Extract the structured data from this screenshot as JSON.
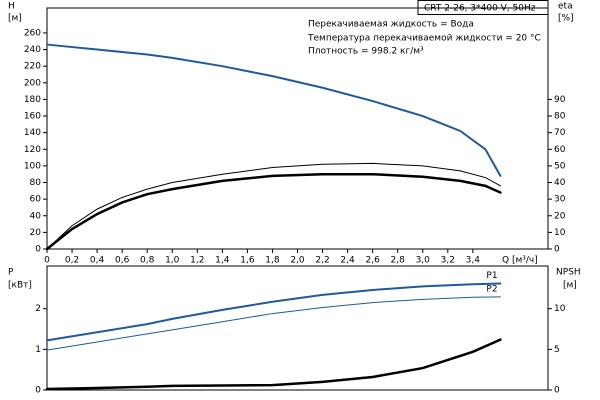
{
  "chart_data": [
    {
      "type": "line",
      "title": "CRT 2-26, 3*400 V, 50Hz",
      "annotations": [
        "Перекачиваемая жидкость = Вода",
        "Температура перекачиваемой жидкости = 20 °C",
        "Плотность = 998.2 кг/м³"
      ],
      "ylabel": "H",
      "yunit": "[м]",
      "y2label": "eta",
      "y2unit": "[%]",
      "xlabel": "Q [м³/ч]",
      "xlim": [
        0,
        4.0
      ],
      "xticks": [
        0,
        {
          "value": 0.2,
          "label": "0,2"
        },
        {
          "value": 0.4,
          "label": "0,4"
        },
        {
          "value": 0.6,
          "label": "0,6"
        },
        {
          "value": 0.8,
          "label": "0,8"
        },
        {
          "value": 1.0,
          "label": "1,0"
        },
        {
          "value": 1.2,
          "label": "1,2"
        },
        {
          "value": 1.4,
          "label": "1,4"
        },
        {
          "value": 1.6,
          "label": "1,6"
        },
        {
          "value": 1.8,
          "label": "1,8"
        },
        {
          "value": 2.0,
          "label": "2,0"
        },
        {
          "value": 2.2,
          "label": "2,2"
        },
        {
          "value": 2.4,
          "label": "2,4"
        },
        {
          "value": 2.6,
          "label": "2,6"
        },
        {
          "value": 2.8,
          "label": "2,8"
        },
        {
          "value": 3.0,
          "label": "3,0"
        },
        {
          "value": 3.2,
          "label": "3,2"
        },
        {
          "value": 3.4,
          "label": "3,4"
        }
      ],
      "ylim": [
        0,
        290
      ],
      "yticks": [
        0,
        20,
        40,
        60,
        80,
        100,
        120,
        140,
        160,
        180,
        200,
        220,
        240,
        260
      ],
      "y2lim": [
        0,
        145
      ],
      "y2ticks": [
        0,
        10,
        20,
        30,
        40,
        50,
        60,
        70,
        80,
        90
      ],
      "x": [
        0,
        0.2,
        0.4,
        0.6,
        0.8,
        1.0,
        1.4,
        1.8,
        2.2,
        2.6,
        3.0,
        3.3,
        3.5,
        3.62
      ],
      "series": [
        {
          "color": "#1f5a9a",
          "line_width": 2,
          "values": [
            246,
            243,
            240,
            237,
            234,
            230,
            220,
            208,
            194,
            178,
            160,
            142,
            120,
            88
          ]
        },
        {
          "color": "#000000",
          "line_width": 1,
          "axis": "y2",
          "values": [
            0,
            14,
            24,
            31,
            36,
            40,
            45,
            49,
            51,
            51.5,
            50,
            47,
            43,
            38
          ]
        },
        {
          "color": "#000000",
          "line_width": 2.5,
          "axis": "y2",
          "values": [
            0,
            12,
            21,
            28,
            33,
            36,
            41,
            44,
            45,
            45,
            43.5,
            41,
            38,
            34
          ]
        }
      ]
    },
    {
      "type": "line",
      "ylabel": "P",
      "yunit": "[кВт]",
      "y2label": "NPSH",
      "y2unit": "[м]",
      "xlim": [
        0,
        4.0
      ],
      "ylim": [
        0,
        3.05
      ],
      "yticks": [
        0,
        1,
        2
      ],
      "y2lim": [
        0,
        15.25
      ],
      "y2ticks": [
        0,
        5,
        10
      ],
      "x": [
        0,
        0.4,
        0.8,
        1.0,
        1.4,
        1.8,
        2.2,
        2.6,
        3.0,
        3.4,
        3.62
      ],
      "series": [
        {
          "name": "P1",
          "color": "#1f5a9a",
          "line_width": 2,
          "values": [
            1.22,
            1.42,
            1.62,
            1.75,
            1.97,
            2.17,
            2.34,
            2.46,
            2.55,
            2.6,
            2.62
          ]
        },
        {
          "name": "P2",
          "color": "#1f5a9a",
          "line_width": 1,
          "values": [
            0.98,
            1.18,
            1.38,
            1.48,
            1.68,
            1.88,
            2.03,
            2.15,
            2.23,
            2.28,
            2.29
          ]
        },
        {
          "color": "#000000",
          "line_width": 2.5,
          "axis": "y2",
          "values": [
            0.12,
            0.25,
            0.4,
            0.5,
            0.55,
            0.6,
            1.0,
            1.6,
            2.7,
            4.7,
            6.2
          ]
        }
      ]
    }
  ]
}
